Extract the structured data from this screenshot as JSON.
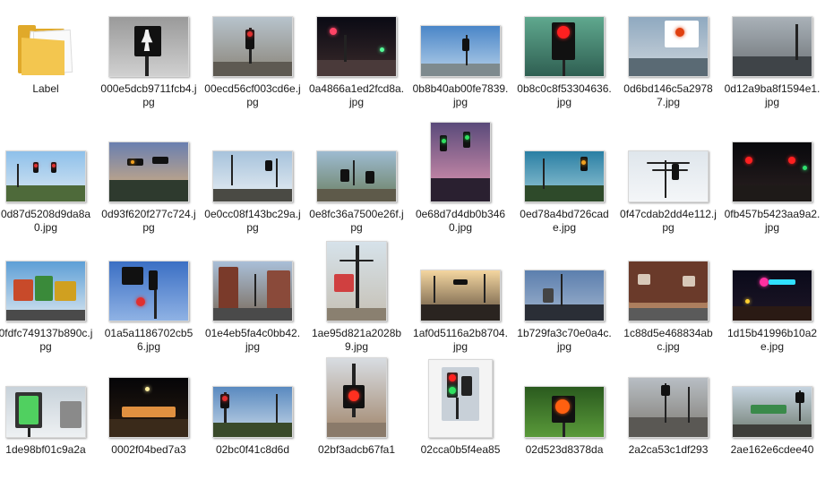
{
  "colors": {
    "text": "#1a1a1a",
    "folder": "#f3c64f",
    "folderDark": "#e0a92a"
  },
  "items": [
    {
      "name": "Label",
      "icon": "folder-icon",
      "scene": "folder"
    },
    {
      "name": "000e5dcb9711fcb4.jpg",
      "scene": "bw-ped"
    },
    {
      "name": "00ecd56cf003cd6e.jpg",
      "scene": "street-day"
    },
    {
      "name": "0a4866a1ed2fcd8a.jpg",
      "scene": "night-neon"
    },
    {
      "name": "0b8b40ab00fe7839.jpg",
      "scene": "blue-sky"
    },
    {
      "name": "0b8c0c8f53304636.jpg",
      "scene": "red-hand"
    },
    {
      "name": "0d6bd146c5a29787.jpg",
      "scene": "store-711"
    },
    {
      "name": "0d12a9ba8f1594e1.jpg",
      "scene": "overcast-road"
    },
    {
      "name": "0d87d5208d9da8a0.jpg",
      "scene": "rural-wide"
    },
    {
      "name": "0d93f620f277c724.jpg",
      "scene": "dusk-hill"
    },
    {
      "name": "0e0cc08f143bc29a.jpg",
      "scene": "palm-road"
    },
    {
      "name": "0e8fc36a7500e26f.jpg",
      "scene": "rail"
    },
    {
      "name": "0e68d7d4db0b3460.jpg",
      "scene": "pink-city"
    },
    {
      "name": "0ed78a4bd726cade.jpg",
      "scene": "teal-sky"
    },
    {
      "name": "0f47cdab2dd4e112.jpg",
      "scene": "wires"
    },
    {
      "name": "0fb457b5423aa9a2.jpg",
      "scene": "night-red"
    },
    {
      "name": "0fdfc749137b890c.jpg",
      "scene": "colorful-shops"
    },
    {
      "name": "01a5a1186702cb56.jpg",
      "scene": "blue-sign"
    },
    {
      "name": "01e4eb5fa4c0bb42.jpg",
      "scene": "brick-street"
    },
    {
      "name": "1ae95d821a2028b9.jpg",
      "scene": "pole-wires"
    },
    {
      "name": "1af0d5116a2b8704.jpg",
      "scene": "sunset-road"
    },
    {
      "name": "1b729fa3c70e0a4c.jpg",
      "scene": "dusk-blue"
    },
    {
      "name": "1c88d5e468834abc.jpg",
      "scene": "brown-building"
    },
    {
      "name": "1d15b41996b10a2e.jpg",
      "scene": "motel-night"
    },
    {
      "name": "1de98bf01c9a2a",
      "scene": "walk-signal"
    },
    {
      "name": "0002f04bed7a3",
      "scene": "night-shop"
    },
    {
      "name": "02bc0f41c8d6d",
      "scene": "sky-trees"
    },
    {
      "name": "02bf3adcb67fa1",
      "scene": "ped-box"
    },
    {
      "name": "02cca0b5f4ea85",
      "scene": "signal-photo"
    },
    {
      "name": "02d523d8378da",
      "scene": "green-hand"
    },
    {
      "name": "2a2ca53c1df293",
      "scene": "grey-street"
    },
    {
      "name": "2ae162e6cdee40",
      "scene": "green-awning"
    }
  ]
}
